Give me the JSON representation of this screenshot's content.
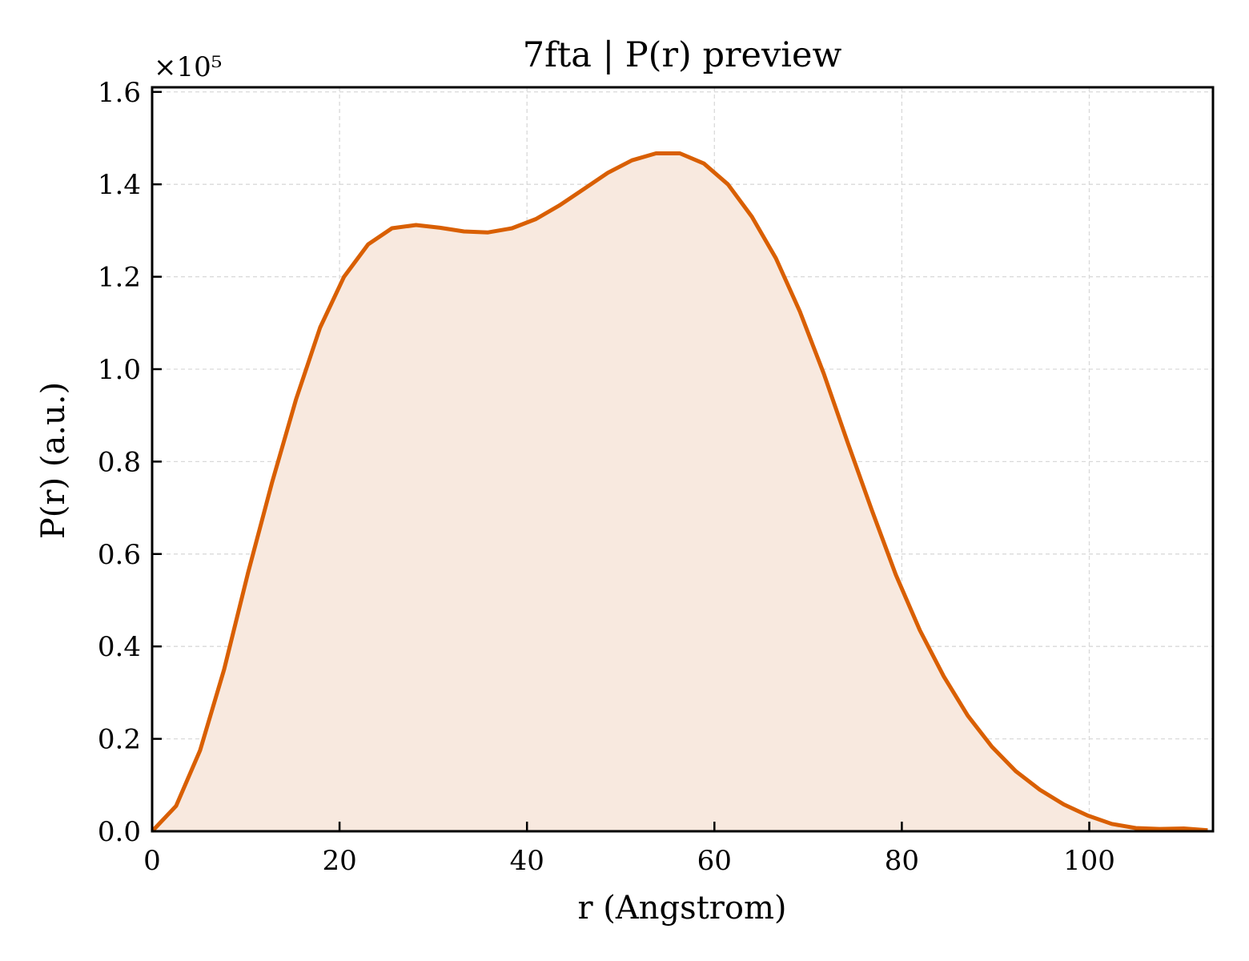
{
  "chart_data": {
    "type": "area",
    "title": "7fta | P(r) preview",
    "xlabel": "r (Angstrom)",
    "ylabel": "P(r) (a.u.)",
    "y_scale_label": "×10⁵",
    "y_scale_factor": 100000,
    "xlim": [
      0,
      113.2
    ],
    "ylim": [
      0,
      1.61
    ],
    "xticks": [
      0,
      20,
      40,
      60,
      80,
      100
    ],
    "xtick_labels": [
      "0",
      "20",
      "40",
      "60",
      "80",
      "100"
    ],
    "yticks": [
      0.0,
      0.2,
      0.4,
      0.6,
      0.8,
      1.0,
      1.2,
      1.4,
      1.6
    ],
    "ytick_labels": [
      "0.0",
      "0.2",
      "0.4",
      "0.6",
      "0.8",
      "1.0",
      "1.2",
      "1.4",
      "1.6"
    ],
    "grid": true,
    "colors": {
      "line": "#d95f02",
      "fill": "#f8e9df",
      "grid": "#d9d9d9"
    },
    "series": [
      {
        "x": [
          0,
          2.56,
          5.12,
          7.68,
          10.24,
          12.8,
          15.36,
          17.92,
          20.48,
          23.04,
          25.6,
          28.16,
          30.72,
          33.28,
          35.84,
          38.4,
          40.96,
          43.52,
          46.08,
          48.64,
          51.2,
          53.76,
          56.32,
          58.88,
          61.44,
          64.0,
          66.56,
          69.12,
          71.68,
          74.24,
          76.8,
          79.36,
          81.92,
          84.48,
          87.04,
          89.6,
          92.16,
          94.72,
          97.28,
          99.84,
          102.4,
          104.96,
          107.52,
          110.08,
          112.64
        ],
        "values": [
          0.0,
          0.055,
          0.175,
          0.35,
          0.56,
          0.755,
          0.935,
          1.09,
          1.2,
          1.27,
          1.305,
          1.312,
          1.306,
          1.298,
          1.296,
          1.305,
          1.325,
          1.355,
          1.39,
          1.425,
          1.452,
          1.467,
          1.467,
          1.445,
          1.4,
          1.33,
          1.24,
          1.125,
          0.99,
          0.84,
          0.695,
          0.555,
          0.435,
          0.335,
          0.25,
          0.183,
          0.13,
          0.09,
          0.058,
          0.034,
          0.016,
          0.007,
          0.005,
          0.006,
          0.002
        ]
      }
    ]
  }
}
